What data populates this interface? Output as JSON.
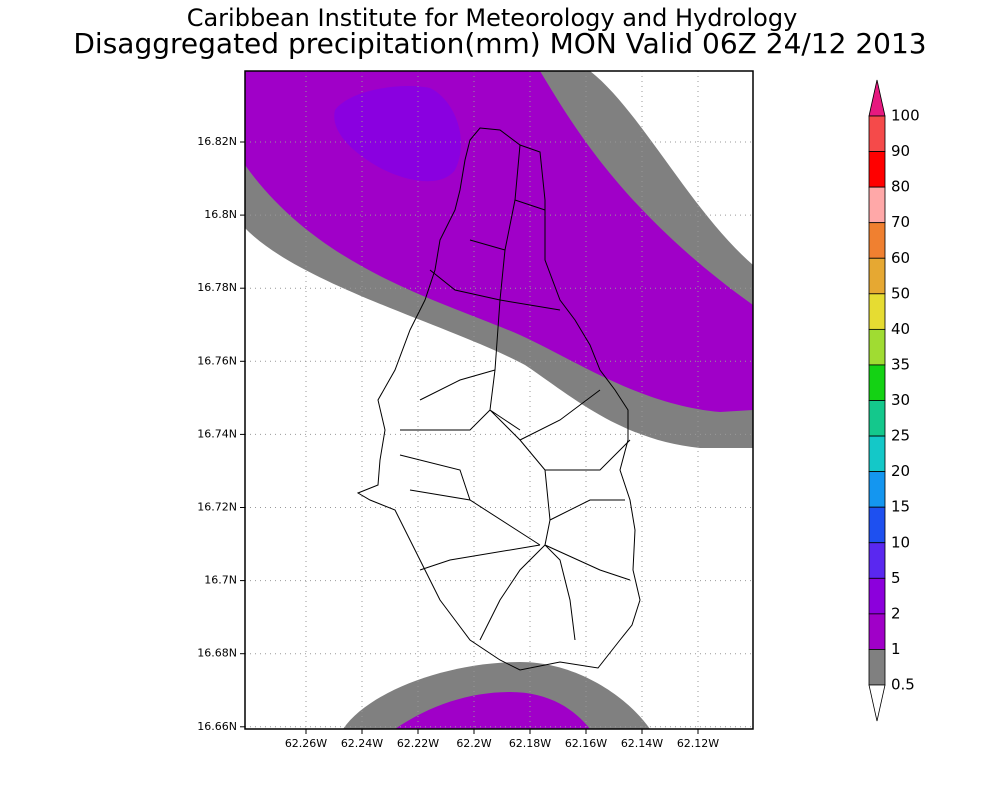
{
  "header": {
    "title": "Caribbean Institute for Meteorology and Hydrology",
    "subtitle": "Disaggregated precipitation(mm) MON Valid 06Z 24/12 2013"
  },
  "map": {
    "lat_ticks": [
      "16.82N",
      "16.8N",
      "16.78N",
      "16.76N",
      "16.74N",
      "16.72N",
      "16.7N",
      "16.68N",
      "16.66N"
    ],
    "lon_ticks": [
      "62.26W",
      "62.24W",
      "62.22W",
      "62.2W",
      "62.18W",
      "62.16W",
      "62.14W",
      "62.12W"
    ]
  },
  "colorbar": {
    "levels": [
      "100",
      "90",
      "80",
      "70",
      "60",
      "50",
      "40",
      "35",
      "30",
      "25",
      "20",
      "15",
      "10",
      "5",
      "2",
      "1",
      "0.5"
    ],
    "over_color": "#e6197f",
    "colors": [
      "#f54a4a",
      "#ff0000",
      "#ffa8a8",
      "#f08030",
      "#e6a832",
      "#e6dc32",
      "#a0dc32",
      "#14d214",
      "#14c88c",
      "#14c8c8",
      "#1496f0",
      "#1e50f0",
      "#5a28f0",
      "#8c00dc",
      "#a000c8",
      "#808080"
    ],
    "under_color": "#ffffff"
  }
}
